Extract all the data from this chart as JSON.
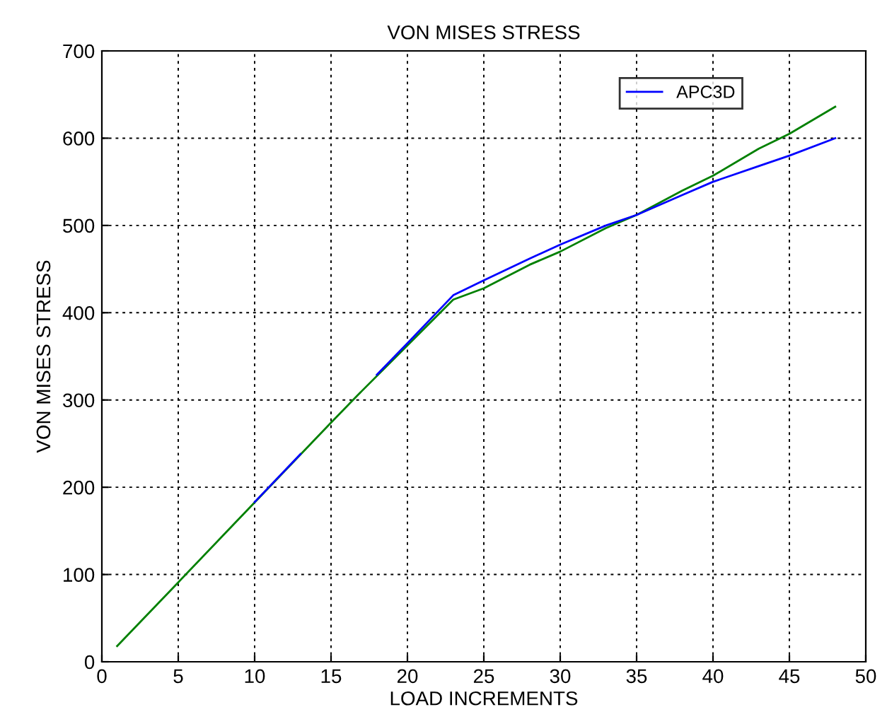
{
  "chart_data": {
    "type": "line",
    "title": "VON MISES STRESS",
    "xlabel": "LOAD INCREMENTS",
    "ylabel": "VON MISES STRESS",
    "series": [
      {
        "name": "APC3D",
        "color": "#0000ff",
        "x": [
          10,
          13,
          15,
          18,
          20,
          23,
          25,
          28,
          30,
          33,
          35,
          38,
          40,
          43,
          45,
          48
        ],
        "values": [
          183,
          238,
          null,
          329,
          365,
          420,
          437,
          462,
          478,
          500,
          512,
          535,
          550,
          568,
          580,
          600
        ]
      },
      {
        "color": "#008000",
        "x": [
          1,
          5,
          8,
          15,
          17,
          23,
          25,
          28,
          30,
          33,
          35,
          38,
          40,
          43,
          45,
          48
        ],
        "values": [
          18,
          91,
          146,
          274,
          310,
          415,
          428,
          455,
          470,
          497,
          512,
          540,
          557,
          588,
          605,
          636
        ]
      }
    ],
    "xlim": [
      0,
      50
    ],
    "xticks": [
      0,
      5,
      10,
      15,
      20,
      25,
      30,
      35,
      40,
      45,
      50
    ],
    "ylim": [
      0,
      700
    ],
    "yticks": [
      0,
      100,
      200,
      300,
      400,
      500,
      600,
      700
    ],
    "grid": true,
    "legend": "top right",
    "marker": "none",
    "line_style": "solid"
  }
}
